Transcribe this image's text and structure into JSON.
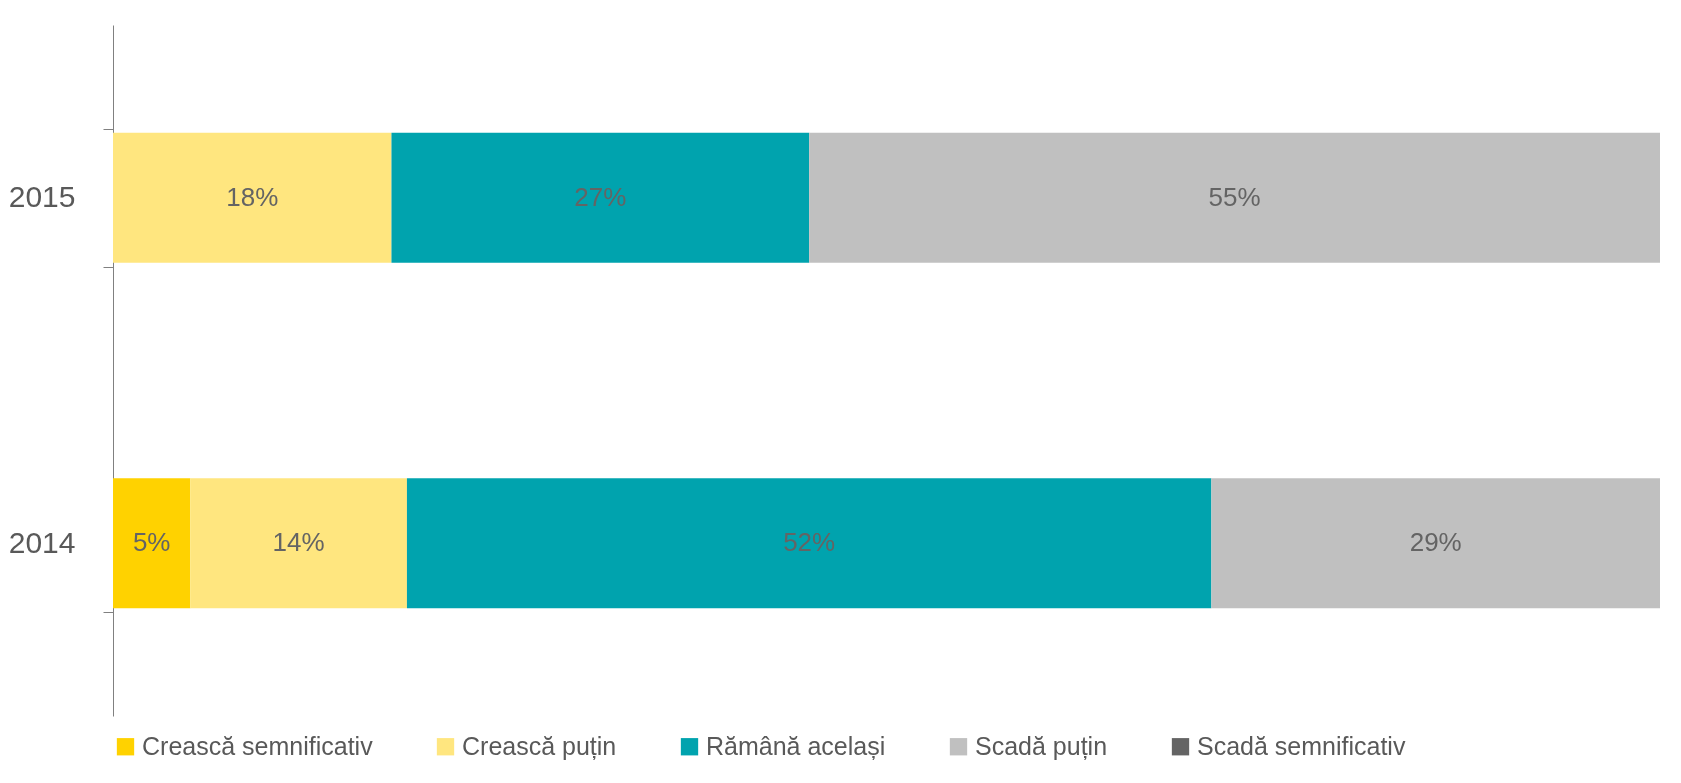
{
  "chart_data": {
    "type": "bar",
    "orientation": "horizontal",
    "stacked": true,
    "categories": [
      "2015",
      "2014"
    ],
    "xlim": [
      0,
      100
    ],
    "tick_labels": "y",
    "legend": "bottom",
    "series": [
      {
        "name": "Crească semnificativ",
        "color": "#ffd200",
        "values": [
          null,
          5
        ],
        "value_labels": [
          null,
          "5%"
        ]
      },
      {
        "name": "Crească puțin",
        "color": "#ffe67f",
        "values": [
          18,
          14
        ],
        "value_labels": [
          "18%",
          "14%"
        ]
      },
      {
        "name": "Rămână același",
        "color": "#00a3ae",
        "values": [
          27,
          52
        ],
        "value_labels": [
          "27%",
          "52%"
        ]
      },
      {
        "name": "Scadă puțin",
        "color": "#c0c0c0",
        "values": [
          55,
          29
        ],
        "value_labels": [
          "55%",
          "29%"
        ]
      },
      {
        "name": "Scadă semnificativ",
        "color": "#646464",
        "values": [
          null,
          null
        ],
        "value_labels": [
          null,
          null
        ]
      }
    ]
  }
}
